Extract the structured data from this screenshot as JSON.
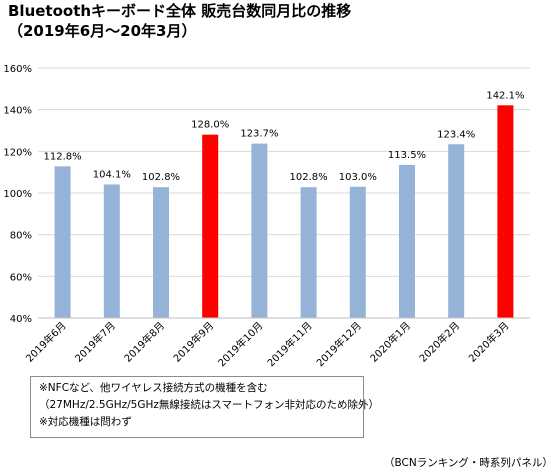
{
  "header": {
    "title_line1": "Bluetoothキーボード全体 販売台数同月比の推移",
    "title_line2": "（2019年6月～20年3月）"
  },
  "chart_data": {
    "type": "bar",
    "categories": [
      "2019年6月",
      "2019年7月",
      "2019年8月",
      "2019年9月",
      "2019年10月",
      "2019年11月",
      "2019年12月",
      "2020年1月",
      "2020年2月",
      "2020年3月"
    ],
    "values": [
      112.8,
      104.1,
      102.8,
      128.0,
      123.7,
      102.8,
      103.0,
      113.5,
      123.4,
      142.1
    ],
    "data_labels": [
      "112.8%",
      "104.1%",
      "102.8%",
      "128.0%",
      "123.7%",
      "102.8%",
      "103.0%",
      "113.5%",
      "123.4%",
      "142.1%"
    ],
    "highlight": [
      false,
      false,
      false,
      true,
      false,
      false,
      false,
      false,
      false,
      true
    ],
    "yticks": [
      40,
      60,
      80,
      100,
      120,
      140,
      160
    ],
    "ytick_labels": [
      "40%",
      "60%",
      "80%",
      "100%",
      "120%",
      "140%",
      "160%"
    ],
    "ylim": [
      40,
      160
    ],
    "grid": true,
    "colors": {
      "bar": "#95b3d7",
      "highlight": "#ff0000",
      "grid": "#d9d9d9"
    }
  },
  "notes": {
    "line1": "※NFCなど、他ワイヤレス接続方式の機種を含む",
    "line2": "（27MHz/2.5GHz/5GHz無線接続はスマートフォン非対応のため除外）",
    "line3": "※対応機種は問わず"
  },
  "source": "（BCNランキング・時系列パネル）"
}
